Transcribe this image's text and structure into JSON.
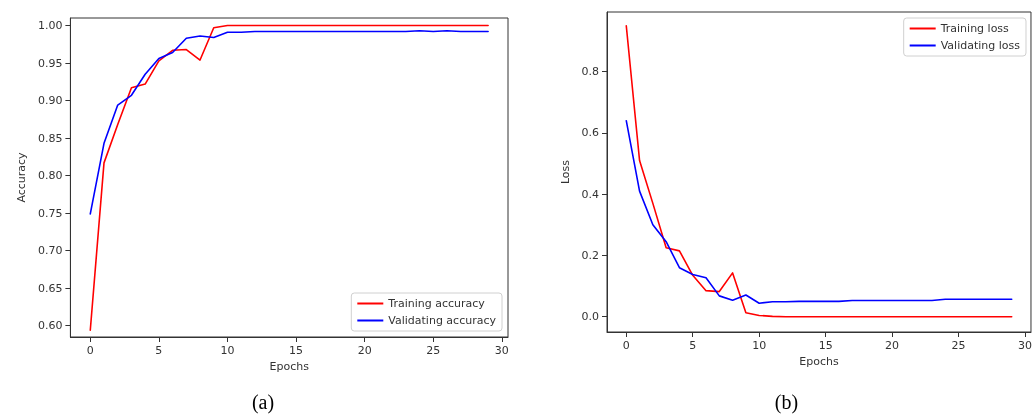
{
  "chart_data": [
    {
      "type": "line",
      "xlabel": "Epochs",
      "ylabel": "Accuracy",
      "annotations": [
        "(a)"
      ],
      "legend": "bottom right",
      "grid": false,
      "marker": "none",
      "line_style": "solid",
      "x": [
        0,
        1,
        2,
        3,
        4,
        5,
        6,
        7,
        8,
        9,
        10,
        11,
        12,
        13,
        14,
        15,
        16,
        17,
        18,
        19,
        20,
        21,
        22,
        23,
        24,
        25,
        26,
        27,
        28,
        29
      ],
      "xlim": [
        -1.45,
        30.45
      ],
      "xticks": [
        0,
        5,
        10,
        15,
        20,
        25,
        30
      ],
      "ylim": [
        0.585,
        1.01
      ],
      "yticks": [
        {
          "value": 0.6,
          "label": "0.60"
        },
        {
          "value": 0.65,
          "label": "0.65"
        },
        {
          "value": 0.7,
          "label": "0.70"
        },
        {
          "value": 0.75,
          "label": "0.75"
        },
        {
          "value": 0.8,
          "label": "0.80"
        },
        {
          "value": 0.85,
          "label": "0.85"
        },
        {
          "value": 0.9,
          "label": "0.90"
        },
        {
          "value": 0.95,
          "label": "0.95"
        },
        {
          "value": 1.0,
          "label": "1.00"
        }
      ],
      "series": [
        {
          "name": "Training accuracy",
          "color": "#ff0000",
          "values": [
            0.594,
            0.817,
            0.868,
            0.917,
            0.922,
            0.953,
            0.967,
            0.968,
            0.954,
            0.997,
            1.0,
            1.0,
            1.0,
            1.0,
            1.0,
            1.0,
            1.0,
            1.0,
            1.0,
            1.0,
            1.0,
            1.0,
            1.0,
            1.0,
            1.0,
            1.0,
            1.0,
            1.0,
            1.0,
            1.0
          ]
        },
        {
          "name": "Validating accuracy",
          "color": "#0000ff",
          "values": [
            0.749,
            0.843,
            0.894,
            0.907,
            0.935,
            0.956,
            0.964,
            0.983,
            0.986,
            0.984,
            0.991,
            0.991,
            0.992,
            0.992,
            0.992,
            0.992,
            0.992,
            0.992,
            0.992,
            0.992,
            0.992,
            0.992,
            0.992,
            0.992,
            0.993,
            0.992,
            0.993,
            0.992,
            0.992,
            0.992
          ]
        }
      ]
    },
    {
      "type": "line",
      "xlabel": "Epochs",
      "ylabel": "Loss",
      "annotations": [
        "(b)"
      ],
      "legend": "top right",
      "grid": false,
      "marker": "none",
      "line_style": "solid",
      "x": [
        0,
        1,
        2,
        3,
        4,
        5,
        6,
        7,
        8,
        9,
        10,
        11,
        12,
        13,
        14,
        15,
        16,
        17,
        18,
        19,
        20,
        21,
        22,
        23,
        24,
        25,
        26,
        27,
        28,
        29
      ],
      "xlim": [
        -1.45,
        30.45
      ],
      "xticks": [
        0,
        5,
        10,
        15,
        20,
        25,
        30
      ],
      "ylim": [
        -0.05,
        0.995
      ],
      "yticks": [
        {
          "value": 0,
          "label": "0.0"
        },
        {
          "value": 0.2,
          "label": "0.2"
        },
        {
          "value": 0.4,
          "label": "0.4"
        },
        {
          "value": 0.6,
          "label": "0.6"
        },
        {
          "value": 0.8,
          "label": "0.8"
        }
      ],
      "series": [
        {
          "name": "Training loss",
          "color": "#ff0000",
          "values": [
            0.95,
            0.51,
            0.37,
            0.225,
            0.215,
            0.135,
            0.085,
            0.082,
            0.143,
            0.013,
            0.004,
            0.001,
            0,
            0,
            0,
            0,
            0,
            0,
            0,
            0,
            0,
            0,
            0,
            0,
            0,
            0,
            0,
            0,
            0,
            0
          ]
        },
        {
          "name": "Validating loss",
          "color": "#0000ff",
          "values": [
            0.64,
            0.41,
            0.3,
            0.245,
            0.16,
            0.138,
            0.127,
            0.068,
            0.054,
            0.071,
            0.044,
            0.049,
            0.049,
            0.05,
            0.05,
            0.05,
            0.05,
            0.053,
            0.053,
            0.053,
            0.053,
            0.053,
            0.053,
            0.053,
            0.057,
            0.057,
            0.057,
            0.057,
            0.057,
            0.057
          ]
        }
      ]
    }
  ]
}
